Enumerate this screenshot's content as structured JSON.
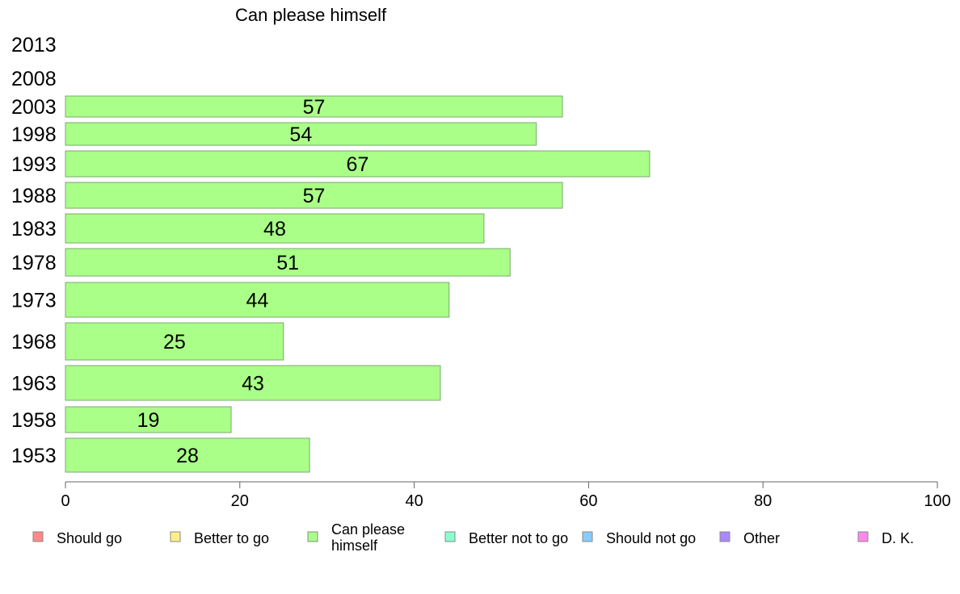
{
  "chart_data": {
    "type": "bar",
    "orientation": "horizontal",
    "title": "Can please himself",
    "xlabel": "",
    "ylabel": "",
    "xlim": [
      0,
      100
    ],
    "xticks": [
      0,
      20,
      40,
      60,
      80,
      100
    ],
    "grid": false,
    "legend_placement": "bottom",
    "categories": [
      "2013",
      "2008",
      "2003",
      "1998",
      "1993",
      "1988",
      "1983",
      "1978",
      "1973",
      "1968",
      "1963",
      "1958",
      "1953"
    ],
    "series": [
      {
        "name": "Can please himself",
        "color": "#aaff88",
        "values": [
          null,
          null,
          57,
          54,
          67,
          57,
          48,
          51,
          44,
          25,
          43,
          19,
          28
        ]
      }
    ],
    "legend": [
      {
        "label": "Should go",
        "color": "#ff8888"
      },
      {
        "label": "Better to go",
        "color": "#ffee88"
      },
      {
        "label": "Can please himself",
        "color": "#aaff88"
      },
      {
        "label": "Better not to go",
        "color": "#88ffcc"
      },
      {
        "label": "Should not go",
        "color": "#88ccff"
      },
      {
        "label": "Other",
        "color": "#aa88ff"
      },
      {
        "label": "D. K.",
        "color": "#ff88ee"
      }
    ]
  }
}
